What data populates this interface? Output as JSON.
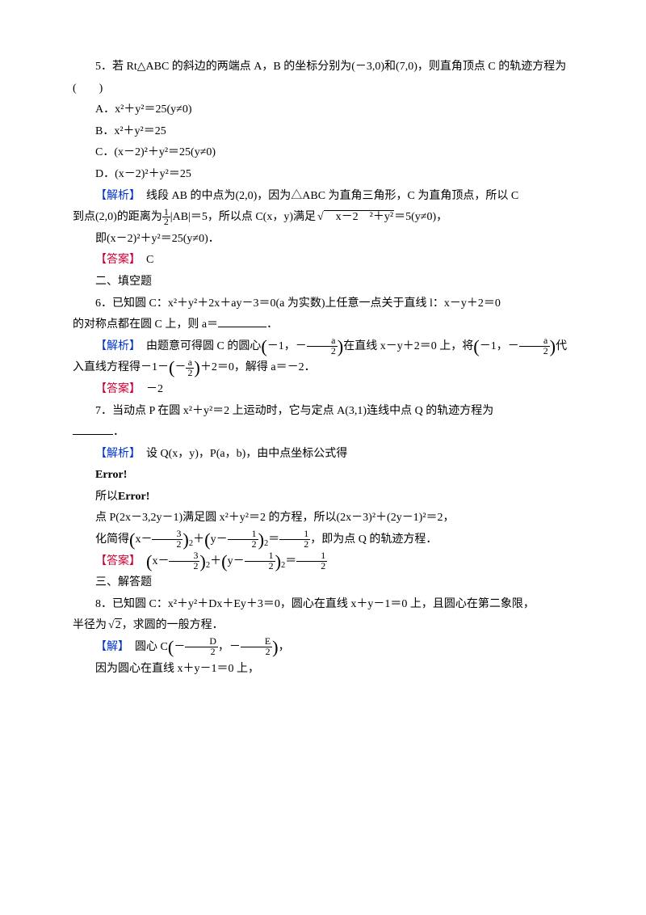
{
  "q5": {
    "prompt": "5．若 Rt△ABC 的斜边的两端点 A，B 的坐标分别为(－3,0)和(7,0)，则直角顶点 C 的轨迹方程为(　　)",
    "optA": "A．x²＋y²＝25(y≠0)",
    "optB": "B．x²＋y²＝25",
    "optC": "C．(x－2)²＋y²＝25(y≠0)",
    "optD": "D．(x－2)²＋y²＝25",
    "analysis_label": "【解析】",
    "analysis_text1": "　线段 AB 的中点为(2,0)，因为△ABC 为直角三角形，C 为直角顶点，所以 C",
    "analysis_text2_pre": "到点(2,0)的距离为",
    "analysis_half": "1",
    "analysis_half_d": "2",
    "analysis_text2_mid": "|AB|＝5，所以点 C(x，y)满足",
    "analysis_root": "　x－2　²＋y²",
    "analysis_text2_post": "＝5(y≠0)，",
    "analysis_text3": "即(x－2)²＋y²＝25(y≠0)．",
    "answer_label": "【答案】",
    "answer": "　C"
  },
  "section2": "二、填空题",
  "q6": {
    "prompt1": "6．已知圆 C：x²＋y²＋2x＋ay－3＝0(a 为实数)上任意一点关于直线 l：x－y＋2＝0",
    "prompt2": "的对称点都在圆 C 上，则 a＝",
    "prompt3": "．",
    "analysis_label": "【解析】",
    "analysis_text1": "　由题意可得圆 C 的圆心",
    "center_x": "－1，－",
    "frac_a": "a",
    "frac_2": "2",
    "analysis_text2": "在直线 x－y＋2＝0 上，将",
    "analysis_text3": "代",
    "analysis_text4_pre": "入直线方程得－1－",
    "analysis_text4_post": "＋2＝0，解得 a＝－2．",
    "neg_a2": "－",
    "answer_label": "【答案】",
    "answer": "　－2"
  },
  "q7": {
    "prompt1": "7．当动点 P 在圆 x²＋y²＝2 上运动时，它与定点 A(3,1)连线中点 Q 的轨迹方程为",
    "prompt2": "．",
    "analysis_label": "【解析】",
    "analysis_text1": "　设 Q(x，y)，P(a，b)，由中点坐标公式得",
    "err1": "Error!",
    "text_so": "所以",
    "err2": "Error!",
    "text2": "点 P(2x－3,2y－1)满足圆 x²＋y²＝2 的方程，所以(2x－3)²＋(2y－1)²＝2，",
    "text3_pre": "化简得",
    "text3_post": "，即为点 Q 的轨迹方程．",
    "f1_n": "3",
    "f1_d": "2",
    "f2_n": "1",
    "f2_d": "2",
    "f3_n": "1",
    "f3_d": "2",
    "answer_label": "【答案】"
  },
  "section3": "三、解答题",
  "q8": {
    "prompt1": "8．已知圆 C：x²＋y²＋Dx＋Ey＋3＝0，圆心在直线 x＋y－1＝0 上，且圆心在第二象限，",
    "prompt2_pre": "半径为",
    "prompt2_sqrt": "2",
    "prompt2_post": "，求圆的一般方程．",
    "solve_label": "【解】",
    "solve_text1": "　圆心 C",
    "cD": "D",
    "cE": "E",
    "c2": "2",
    "solve_text1_post": "，",
    "solve_text2": "因为圆心在直线 x＋y－1＝0 上，"
  }
}
